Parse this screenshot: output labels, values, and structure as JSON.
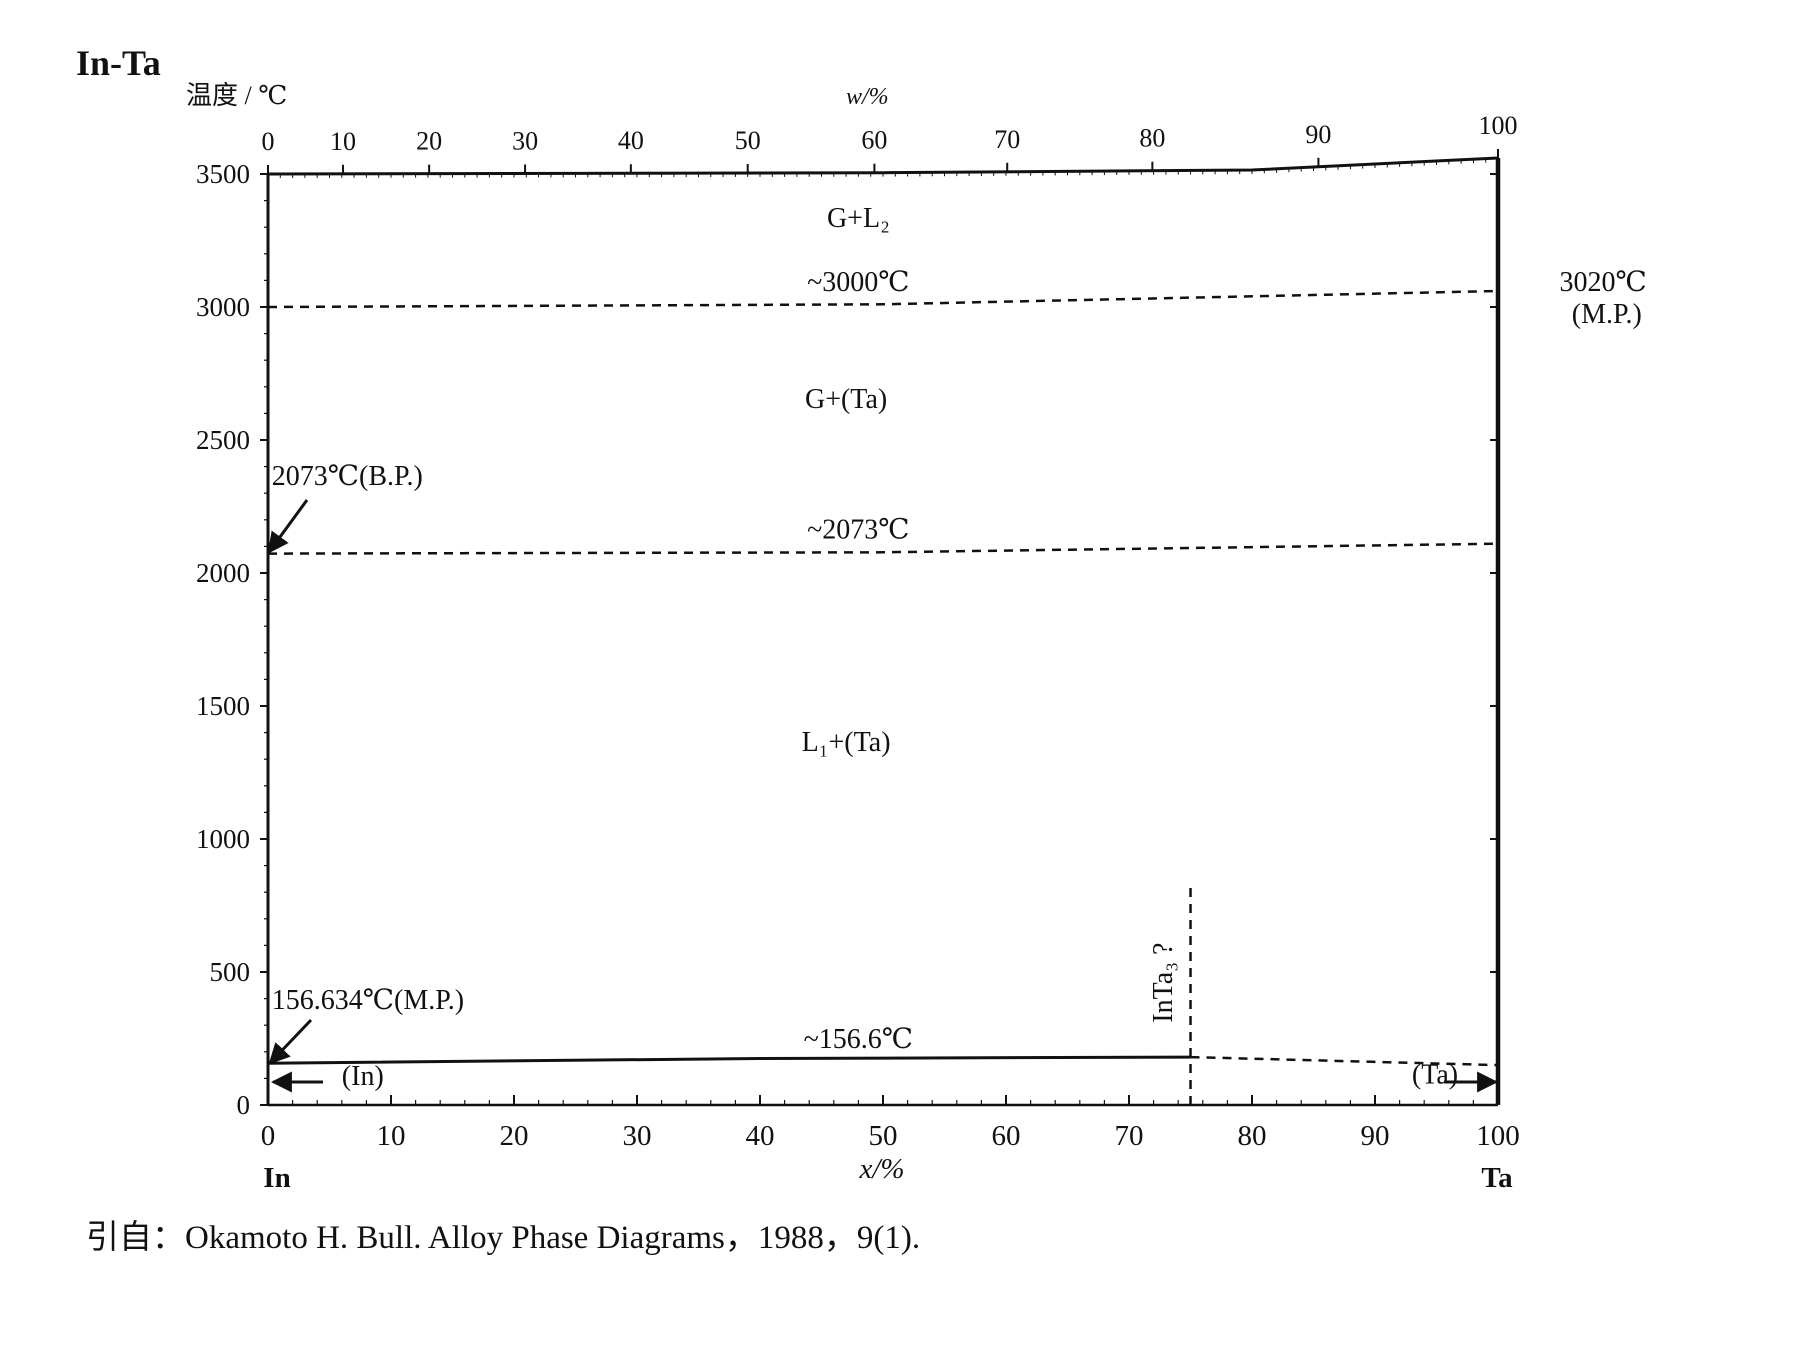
{
  "chart_data": {
    "type": "line",
    "title": "In-Ta",
    "ylabel": "温度 / ℃",
    "xlabel": "x/%",
    "top_axis_label": "w/%",
    "ylim": [
      0,
      3500
    ],
    "xlim": [
      0,
      100
    ],
    "y_ticks": [
      "0",
      "500",
      "1000",
      "1500",
      "2000",
      "2500",
      "3000",
      "3500"
    ],
    "x_ticks": [
      "0",
      "10",
      "20",
      "30",
      "40",
      "50",
      "60",
      "70",
      "80",
      "90",
      "100"
    ],
    "top_ticks": [
      "0",
      "10",
      "20",
      "30",
      "40",
      "50",
      "60",
      "70",
      "80",
      "90",
      "100"
    ],
    "top_tick_x_positions": [
      0,
      6.1,
      13.1,
      20.9,
      29.5,
      39.0,
      49.3,
      60.1,
      71.9,
      85.4,
      100
    ],
    "elements": {
      "left": "In",
      "right": "Ta"
    },
    "regions": [
      {
        "label": "G+L₂",
        "x": 48,
        "y": 3300
      },
      {
        "label": "G+(Ta)",
        "x": 47,
        "y": 2620
      },
      {
        "label": "L₁+(Ta)",
        "x": 47,
        "y": 1330
      }
    ],
    "lines": [
      {
        "name": "gas boundary",
        "style": "solid",
        "points": [
          [
            0,
            3500
          ],
          [
            50,
            3505
          ],
          [
            80,
            3515
          ],
          [
            100,
            3560
          ]
        ]
      },
      {
        "name": "~3000℃",
        "style": "dashed",
        "points": [
          [
            0,
            3000
          ],
          [
            50,
            3010
          ],
          [
            100,
            3060
          ]
        ]
      },
      {
        "name": "~2073℃",
        "style": "dashed",
        "points": [
          [
            0,
            2073
          ],
          [
            50,
            2078
          ],
          [
            100,
            2110
          ]
        ]
      },
      {
        "name": "~156.6℃",
        "style": "solid",
        "points": [
          [
            0,
            157
          ],
          [
            40,
            175
          ],
          [
            75,
            180
          ]
        ]
      },
      {
        "name": "~156.6℃ dashed continuation",
        "style": "dashed",
        "points": [
          [
            75,
            180
          ],
          [
            100,
            150
          ]
        ]
      },
      {
        "name": "InTa₃ ?",
        "style": "dashed",
        "points": [
          [
            75,
            0
          ],
          [
            75,
            830
          ]
        ]
      }
    ],
    "annotations": [
      {
        "text": "~3000℃",
        "x": 48,
        "y": 3060
      },
      {
        "text": "~2073℃",
        "x": 48,
        "y": 2130
      },
      {
        "text": "~156.6℃",
        "x": 48,
        "y": 215
      },
      {
        "text": "3020℃",
        "x": 105,
        "y": 3060
      },
      {
        "text": "(M.P.)",
        "x": 106,
        "y": 2940
      },
      {
        "text": "2073℃(B.P.)",
        "x": 0.3,
        "y": 2330
      },
      {
        "text": "156.634℃(M.P.)",
        "x": 0.3,
        "y": 360
      },
      {
        "text": "InTa₃ ?",
        "x": 73.5,
        "y": 460
      },
      {
        "text": "(In)",
        "x": 6,
        "y": 75
      },
      {
        "text": "(Ta)",
        "x": 93,
        "y": 80
      }
    ],
    "grid": false
  },
  "source_text": "引自：Okamoto H. Bull.  Alloy Phase Diagrams，1988，9(1)."
}
